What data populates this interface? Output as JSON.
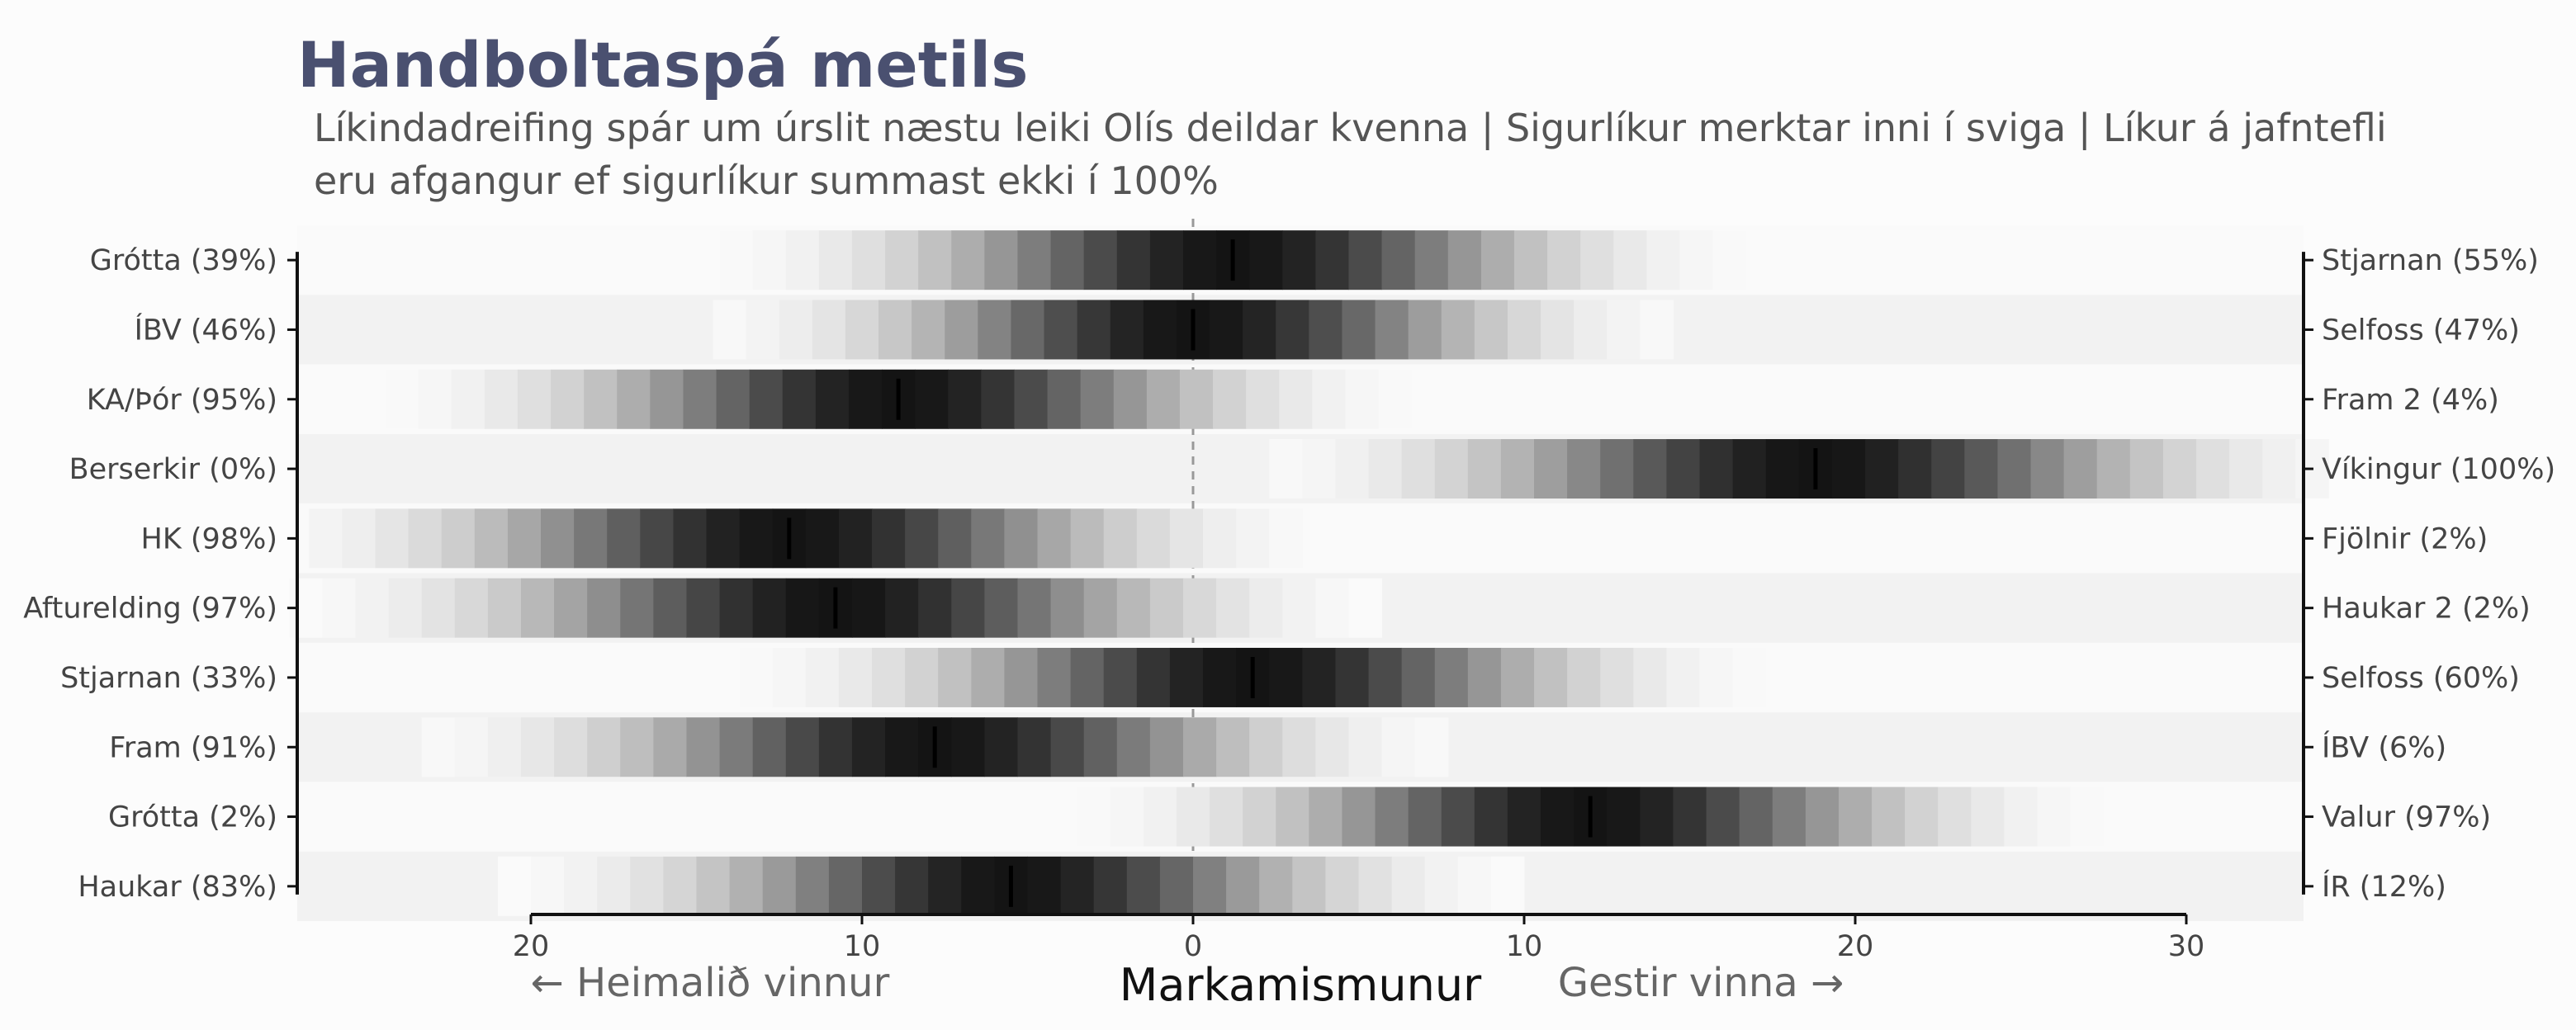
{
  "title": "Handboltaspá metils",
  "subtitle_line1": "Líkindadreifing spár um úrslit næstu leiki Olís deildar kvenna | Sigurlíkur merktar inni í sviga | Líkur á jafntefli",
  "subtitle_line2": "eru afgangur ef sigurlíkur summast ekki í 100%",
  "chart_data": {
    "type": "heatmap",
    "xlabel": "Markamismunur",
    "home_wins_label": "← Heimalið vinnur",
    "away_wins_label": "Gestir vinna →",
    "xlim": [
      -27,
      34
    ],
    "x_reversed_left_side": true,
    "xticks": [
      -20,
      -10,
      0,
      10,
      20,
      30
    ],
    "xtick_labels": [
      "20",
      "10",
      "0",
      "10",
      "20",
      "30"
    ],
    "games": [
      {
        "home": "Grótta (39%)",
        "away": "Stjarnan (55%)",
        "median": 1.2,
        "spread": 5.5
      },
      {
        "home": "ÍBV (46%)",
        "away": "Selfoss (47%)",
        "median": 0.0,
        "spread": 5.3
      },
      {
        "home": "KA/Þór (95%)",
        "away": "Fram 2 (4%)",
        "median": -8.9,
        "spread": 5.5
      },
      {
        "home": "Berserkir (0%)",
        "away": "Víkingur (100%)",
        "median": 18.8,
        "spread": 6.0
      },
      {
        "home": "HK (98%)",
        "away": "Fjölnir (2%)",
        "median": -12.2,
        "spread": 5.7
      },
      {
        "home": "Afturelding (97%)",
        "away": "Haukar 2 (2%)",
        "median": -10.8,
        "spread": 5.8
      },
      {
        "home": "Stjarnan (33%)",
        "away": "Selfoss (60%)",
        "median": 1.8,
        "spread": 5.5
      },
      {
        "home": "Fram (91%)",
        "away": "ÍBV (6%)",
        "median": -7.8,
        "spread": 5.6
      },
      {
        "home": "Grótta (2%)",
        "away": "Valur (97%)",
        "median": 12.0,
        "spread": 5.5
      },
      {
        "home": "Haukar (83%)",
        "away": "ÍR (12%)",
        "median": -5.5,
        "spread": 5.4
      }
    ]
  }
}
